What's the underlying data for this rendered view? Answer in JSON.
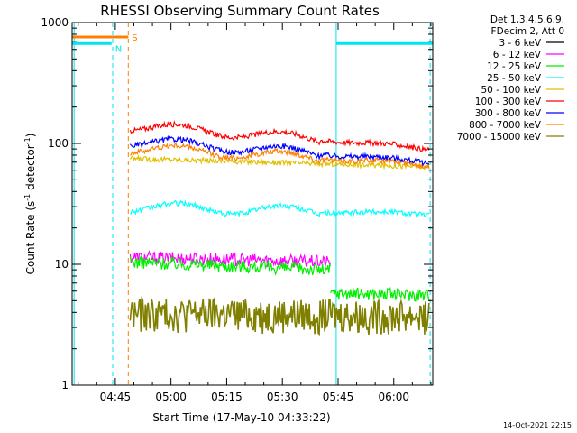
{
  "chart_data": {
    "type": "line",
    "title": "RHESSI Observing Summary Count Rates",
    "xlabel": "Start Time (17-May-10 04:33:22)",
    "ylabel_main": "Count Rate (s",
    "ylabel_sup1": "-1",
    "ylabel_mid": " detector",
    "ylabel_sup2": "-1",
    "ylabel_end": ")",
    "y_scale": "log",
    "ylim": [
      1,
      1000
    ],
    "xlim": [
      "04:33:22",
      "06:10:30"
    ],
    "x_tick_labels": [
      "04:45",
      "05:00",
      "05:15",
      "05:30",
      "05:45",
      "06:00"
    ],
    "x_ticks_min": [
      45,
      60,
      75,
      90,
      105,
      120
    ],
    "x_start_min": 33.37,
    "x_end_min": 130.5,
    "y_tick_labels": [
      "1",
      "10",
      "100",
      "1000"
    ],
    "y_tick_values": [
      1,
      10,
      100,
      1000
    ],
    "legend_header": [
      "Det 1,3,4,5,6,9,",
      "FDecim 2, Att 0"
    ],
    "series": [
      {
        "name": "3 - 6 keV",
        "color": "#000000"
      },
      {
        "name": "6 - 12 keV",
        "color": "#ff00ff",
        "segments": [
          {
            "t": [
              49,
              103
            ],
            "v": [
              11.5,
              10.5
            ]
          }
        ]
      },
      {
        "name": "12 - 25 keV",
        "color": "#00ee00",
        "segments": [
          {
            "t": [
              49,
              103
            ],
            "v": [
              10.5,
              9.0
            ]
          },
          {
            "t": [
              103,
              129.5
            ],
            "v": [
              5.8,
              5.6
            ]
          }
        ]
      },
      {
        "name": "25 - 50 keV",
        "color": "#00ffff",
        "segments": [
          {
            "t": [
              49,
              129.5
            ],
            "v": [
              30,
              26
            ]
          }
        ]
      },
      {
        "name": "50 - 100 keV",
        "color": "#e0c000",
        "segments": [
          {
            "t": [
              49,
              129.5
            ],
            "v": [
              75,
              64
            ]
          }
        ]
      },
      {
        "name": "100 - 300 keV",
        "color": "#ff0000",
        "segments": [
          {
            "t": [
              49,
              129.5
            ],
            "v": [
              140,
              90
            ]
          }
        ]
      },
      {
        "name": "300 - 800 keV",
        "color": "#0000ff",
        "segments": [
          {
            "t": [
              49,
              129.5
            ],
            "v": [
              105,
              70
            ]
          }
        ]
      },
      {
        "name": "800 - 7000 keV",
        "color": "#ff8000",
        "segments": [
          {
            "t": [
              49,
              129.5
            ],
            "v": [
              92,
              66
            ]
          }
        ]
      },
      {
        "name": "7000 - 15000 keV",
        "color": "#808000",
        "segments": [
          {
            "t": [
              49,
              129.5
            ],
            "v": [
              4.0,
              3.8
            ]
          }
        ]
      }
    ],
    "markers": [
      {
        "label": "S",
        "color": "#ff8000",
        "level": 760,
        "t_end": 48.5
      },
      {
        "label": "N",
        "color": "#00e5ee",
        "level": 670,
        "t_end": 44.0
      }
    ],
    "night_after_level": 670,
    "night_after_start": 104.5
  },
  "footer": {
    "timestamp": "14-Oct-2021 22:15"
  }
}
